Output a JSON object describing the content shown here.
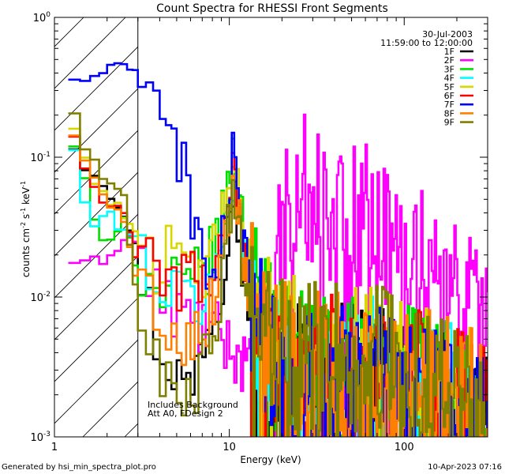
{
  "chart_data": {
    "type": "line",
    "title": "Count Spectra for RHESSI Front Segments",
    "xlabel": "Energy (keV)",
    "ylabel_parts": [
      "counts cm",
      "-2",
      " s",
      "-1",
      " keV",
      "-1"
    ],
    "x_scale": "log",
    "y_scale": "log",
    "xlim": [
      1,
      300
    ],
    "ylim": [
      0.001,
      1
    ],
    "x_ticks": [
      {
        "value": 1,
        "label": "1"
      },
      {
        "value": 10,
        "label": "10"
      },
      {
        "value": 100,
        "label": "100"
      }
    ],
    "y_ticks": [
      {
        "value": 1,
        "base": "10",
        "exp": "0"
      },
      {
        "value": 0.1,
        "base": "10",
        "exp": "-1"
      },
      {
        "value": 0.01,
        "base": "10",
        "exp": "-2"
      },
      {
        "value": 0.001,
        "base": "10",
        "exp": "-3"
      }
    ],
    "date": "30-Jul-2003",
    "time_range": "11:59:00 to 12:00:00",
    "annotation_lines": [
      "Includes Background",
      "Att A0, FDesign 2"
    ],
    "hatched_region": {
      "x_min": 1,
      "x_max": 3
    },
    "series": [
      {
        "name": "1F",
        "color": "#000000",
        "anchors": [
          [
            1.2,
            0.16
          ],
          [
            1.4,
            0.09
          ],
          [
            1.6,
            0.085
          ],
          [
            2.0,
            0.06
          ],
          [
            2.5,
            0.04
          ],
          [
            3.0,
            0.02
          ],
          [
            4.0,
            0.004
          ],
          [
            5.0,
            0.003
          ],
          [
            6.0,
            0.002
          ],
          [
            7.0,
            0.005
          ],
          [
            8.0,
            0.008
          ],
          [
            9.0,
            0.012
          ],
          [
            10.0,
            0.04
          ],
          [
            10.5,
            0.07
          ],
          [
            11.0,
            0.04
          ],
          [
            12.0,
            0.015
          ],
          [
            14.0,
            0.006
          ],
          [
            18.0,
            0.003
          ],
          [
            25.0,
            0.0025
          ],
          [
            40.0,
            0.0025
          ],
          [
            60.0,
            0.003
          ],
          [
            100.0,
            0.0022
          ],
          [
            200.0,
            0.0015
          ],
          [
            300.0,
            0.0012
          ]
        ]
      },
      {
        "name": "2F",
        "color": "#ff00ff",
        "anchors": [
          [
            1.2,
            0.027
          ],
          [
            1.35,
            0.015
          ],
          [
            1.6,
            0.018
          ],
          [
            1.8,
            0.018
          ],
          [
            2.0,
            0.019
          ],
          [
            2.2,
            0.022
          ],
          [
            2.5,
            0.025
          ],
          [
            2.8,
            0.028
          ],
          [
            3.2,
            0.018
          ],
          [
            3.6,
            0.012
          ],
          [
            4.2,
            0.009
          ],
          [
            5.0,
            0.008
          ],
          [
            6.0,
            0.007
          ],
          [
            7.0,
            0.006
          ],
          [
            8.0,
            0.006
          ],
          [
            9.0,
            0.005
          ],
          [
            11.0,
            0.004
          ],
          [
            13.0,
            0.003
          ],
          [
            15.0,
            0.004
          ],
          [
            17.0,
            0.007
          ],
          [
            19.0,
            0.02
          ],
          [
            21.0,
            0.04
          ],
          [
            24.0,
            0.06
          ],
          [
            28.0,
            0.065
          ],
          [
            32.0,
            0.055
          ],
          [
            38.0,
            0.045
          ],
          [
            45.0,
            0.04
          ],
          [
            55.0,
            0.038
          ],
          [
            65.0,
            0.04
          ],
          [
            75.0,
            0.028
          ],
          [
            90.0,
            0.022
          ],
          [
            110.0,
            0.02
          ],
          [
            140.0,
            0.018
          ],
          [
            170.0,
            0.013
          ],
          [
            200.0,
            0.01
          ],
          [
            240.0,
            0.008
          ],
          [
            280.0,
            0.006
          ],
          [
            300.0,
            0.0045
          ]
        ]
      },
      {
        "name": "3F",
        "color": "#00e000",
        "anchors": [
          [
            1.2,
            0.17
          ],
          [
            1.4,
            0.09
          ],
          [
            1.6,
            0.05
          ],
          [
            1.8,
            0.025
          ],
          [
            2.0,
            0.022
          ],
          [
            2.5,
            0.04
          ],
          [
            3.0,
            0.015
          ],
          [
            4.0,
            0.01
          ],
          [
            5.0,
            0.012
          ],
          [
            6.0,
            0.012
          ],
          [
            7.0,
            0.015
          ],
          [
            8.0,
            0.02
          ],
          [
            9.0,
            0.03
          ],
          [
            10.0,
            0.07
          ],
          [
            10.5,
            0.11
          ],
          [
            11.0,
            0.07
          ],
          [
            12.0,
            0.03
          ],
          [
            14.0,
            0.012
          ],
          [
            18.0,
            0.004
          ],
          [
            25.0,
            0.0035
          ],
          [
            40.0,
            0.003
          ],
          [
            60.0,
            0.0035
          ],
          [
            100.0,
            0.0025
          ],
          [
            200.0,
            0.002
          ],
          [
            300.0,
            0.0015
          ]
        ]
      },
      {
        "name": "4F",
        "color": "#00ffff",
        "anchors": [
          [
            1.2,
            0.15
          ],
          [
            1.35,
            0.1
          ],
          [
            1.45,
            0.06
          ],
          [
            1.55,
            0.035
          ],
          [
            1.8,
            0.032
          ],
          [
            2.0,
            0.04
          ],
          [
            2.5,
            0.03
          ],
          [
            3.0,
            0.025
          ],
          [
            4.0,
            0.012
          ],
          [
            5.0,
            0.01
          ],
          [
            6.0,
            0.01
          ],
          [
            7.0,
            0.009
          ],
          [
            8.0,
            0.012
          ],
          [
            9.0,
            0.02
          ],
          [
            10.0,
            0.05
          ],
          [
            10.5,
            0.08
          ],
          [
            11.0,
            0.05
          ],
          [
            12.0,
            0.02
          ],
          [
            14.0,
            0.008
          ],
          [
            18.0,
            0.003
          ],
          [
            25.0,
            0.0025
          ],
          [
            40.0,
            0.0025
          ],
          [
            60.0,
            0.003
          ],
          [
            100.0,
            0.0022
          ],
          [
            200.0,
            0.0018
          ],
          [
            300.0,
            0.0012
          ]
        ]
      },
      {
        "name": "5F",
        "color": "#d8d800",
        "anchors": [
          [
            1.2,
            0.22
          ],
          [
            1.4,
            0.12
          ],
          [
            1.6,
            0.08
          ],
          [
            2.0,
            0.05
          ],
          [
            2.5,
            0.04
          ],
          [
            2.8,
            0.03
          ],
          [
            3.2,
            0.03
          ],
          [
            3.5,
            0.025
          ],
          [
            4.0,
            0.015
          ],
          [
            4.5,
            0.02
          ],
          [
            5.0,
            0.015
          ],
          [
            6.0,
            0.015
          ],
          [
            7.0,
            0.015
          ],
          [
            8.0,
            0.02
          ],
          [
            9.0,
            0.03
          ],
          [
            10.0,
            0.07
          ],
          [
            10.5,
            0.1
          ],
          [
            11.0,
            0.06
          ],
          [
            12.0,
            0.025
          ],
          [
            14.0,
            0.01
          ],
          [
            18.0,
            0.005
          ],
          [
            25.0,
            0.004
          ],
          [
            40.0,
            0.0035
          ],
          [
            60.0,
            0.004
          ],
          [
            100.0,
            0.003
          ],
          [
            200.0,
            0.002
          ],
          [
            300.0,
            0.0015
          ]
        ]
      },
      {
        "name": "6F",
        "color": "#ff0000",
        "anchors": [
          [
            1.2,
            0.2
          ],
          [
            1.4,
            0.1
          ],
          [
            1.6,
            0.07
          ],
          [
            1.8,
            0.05
          ],
          [
            2.0,
            0.045
          ],
          [
            2.5,
            0.04
          ],
          [
            3.0,
            0.018
          ],
          [
            4.0,
            0.014
          ],
          [
            5.0,
            0.013
          ],
          [
            6.0,
            0.014
          ],
          [
            7.0,
            0.012
          ],
          [
            8.0,
            0.015
          ],
          [
            9.0,
            0.025
          ],
          [
            10.0,
            0.06
          ],
          [
            10.5,
            0.09
          ],
          [
            11.0,
            0.05
          ],
          [
            12.0,
            0.02
          ],
          [
            14.0,
            0.008
          ],
          [
            18.0,
            0.003
          ],
          [
            25.0,
            0.003
          ],
          [
            40.0,
            0.003
          ],
          [
            60.0,
            0.0035
          ],
          [
            100.0,
            0.0025
          ],
          [
            200.0,
            0.0018
          ],
          [
            300.0,
            0.0013
          ]
        ]
      },
      {
        "name": "7F",
        "color": "#0000ff",
        "anchors": [
          [
            1.2,
            0.35
          ],
          [
            1.5,
            0.36
          ],
          [
            1.8,
            0.4
          ],
          [
            2.0,
            0.42
          ],
          [
            2.3,
            0.44
          ],
          [
            2.6,
            0.42
          ],
          [
            3.0,
            0.4
          ],
          [
            3.6,
            0.36
          ],
          [
            4.0,
            0.3
          ],
          [
            4.5,
            0.2
          ],
          [
            5.0,
            0.12
          ],
          [
            5.5,
            0.08
          ],
          [
            6.0,
            0.05
          ],
          [
            6.6,
            0.028
          ],
          [
            7.2,
            0.018
          ],
          [
            8.0,
            0.012
          ],
          [
            9.0,
            0.02
          ],
          [
            10.0,
            0.06
          ],
          [
            10.5,
            0.09
          ],
          [
            11.0,
            0.05
          ],
          [
            12.0,
            0.02
          ],
          [
            14.0,
            0.008
          ],
          [
            18.0,
            0.003
          ],
          [
            25.0,
            0.0025
          ],
          [
            40.0,
            0.0025
          ],
          [
            60.0,
            0.003
          ],
          [
            100.0,
            0.0022
          ],
          [
            200.0,
            0.0015
          ],
          [
            300.0,
            0.0012
          ]
        ]
      },
      {
        "name": "8F",
        "color": "#ff8000",
        "anchors": [
          [
            1.2,
            0.18
          ],
          [
            1.4,
            0.11
          ],
          [
            1.6,
            0.09
          ],
          [
            2.0,
            0.05
          ],
          [
            2.5,
            0.035
          ],
          [
            3.0,
            0.012
          ],
          [
            4.0,
            0.008
          ],
          [
            5.0,
            0.006
          ],
          [
            6.0,
            0.005
          ],
          [
            7.0,
            0.006
          ],
          [
            8.0,
            0.009
          ],
          [
            9.0,
            0.018
          ],
          [
            10.0,
            0.05
          ],
          [
            10.5,
            0.09
          ],
          [
            11.0,
            0.05
          ],
          [
            12.0,
            0.02
          ],
          [
            14.0,
            0.008
          ],
          [
            18.0,
            0.004
          ],
          [
            25.0,
            0.0035
          ],
          [
            40.0,
            0.003
          ],
          [
            60.0,
            0.0035
          ],
          [
            100.0,
            0.0028
          ],
          [
            200.0,
            0.002
          ],
          [
            300.0,
            0.0014
          ]
        ]
      },
      {
        "name": "9F",
        "color": "#808000",
        "anchors": [
          [
            1.2,
            0.27
          ],
          [
            1.4,
            0.15
          ],
          [
            1.6,
            0.1
          ],
          [
            2.0,
            0.07
          ],
          [
            2.5,
            0.05
          ],
          [
            3.0,
            0.008
          ],
          [
            4.0,
            0.003
          ],
          [
            5.0,
            0.0025
          ],
          [
            6.0,
            0.002
          ],
          [
            7.0,
            0.003
          ],
          [
            8.0,
            0.005
          ],
          [
            9.0,
            0.01
          ],
          [
            10.0,
            0.035
          ],
          [
            10.5,
            0.06
          ],
          [
            11.0,
            0.035
          ],
          [
            12.0,
            0.015
          ],
          [
            14.0,
            0.006
          ],
          [
            18.0,
            0.004
          ],
          [
            25.0,
            0.004
          ],
          [
            40.0,
            0.0035
          ],
          [
            60.0,
            0.004
          ],
          [
            100.0,
            0.003
          ],
          [
            200.0,
            0.002
          ],
          [
            300.0,
            0.0014
          ]
        ]
      }
    ]
  },
  "footer": {
    "generated_by": "Generated by hsi_min_spectra_plot.pro",
    "timestamp": "10-Apr-2023 07:16"
  }
}
